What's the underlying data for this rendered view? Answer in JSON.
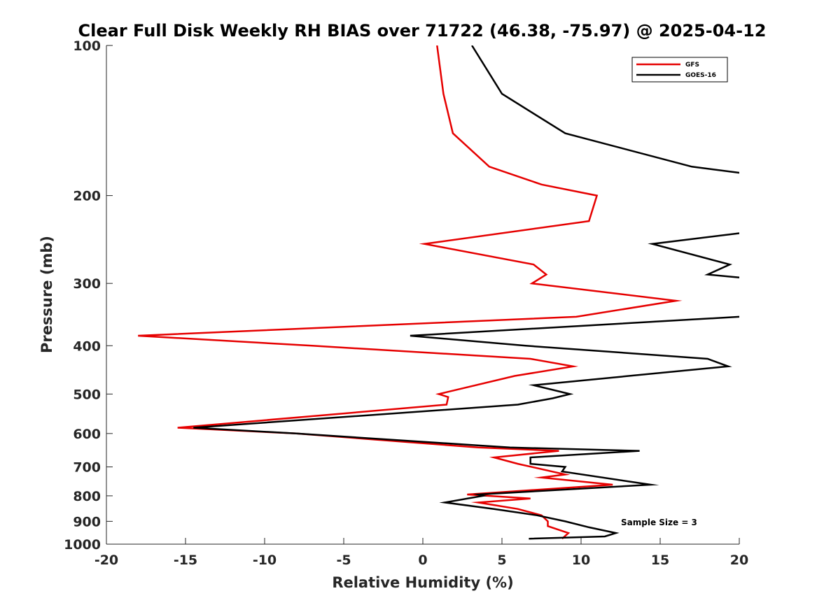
{
  "chart_data": {
    "type": "line",
    "title": "Clear Full Disk Weekly RH BIAS over 71722 (46.38, -75.97) @ 2025-04-12",
    "xlabel": "Relative Humidity (%)",
    "ylabel": "Pressure (mb)",
    "xlim": [
      -20,
      20
    ],
    "ylim": [
      100,
      1000
    ],
    "yscale": "log",
    "reverse_y": true,
    "grid": false,
    "xticks": [
      -20,
      -15,
      -10,
      -5,
      0,
      5,
      10,
      15,
      20
    ],
    "xtick_labels": [
      "-20",
      "-15",
      "-10",
      "-5",
      "0",
      "5",
      "10",
      "15",
      "20"
    ],
    "yticks": [
      100,
      200,
      300,
      400,
      500,
      600,
      700,
      800,
      900,
      1000
    ],
    "ytick_labels": [
      "100",
      "200",
      "300",
      "400",
      "500",
      "600",
      "700",
      "800",
      "900",
      "1000"
    ],
    "legend_position": "top-right",
    "annotation": "Sample Size = 3",
    "series": [
      {
        "name": "GFS",
        "color": "#e60000",
        "points": [
          [
            0.9,
            100
          ],
          [
            1.3,
            125
          ],
          [
            1.9,
            150
          ],
          [
            4.2,
            175
          ],
          [
            7.5,
            190
          ],
          [
            11.0,
            200
          ],
          [
            10.5,
            225
          ],
          [
            0.1,
            250
          ],
          [
            7.0,
            275
          ],
          [
            7.8,
            288
          ],
          [
            6.9,
            300
          ],
          [
            16.0,
            325
          ],
          [
            9.7,
            350
          ],
          [
            -18.0,
            382
          ],
          [
            -7.0,
            400
          ],
          [
            6.8,
            425
          ],
          [
            9.5,
            440
          ],
          [
            5.8,
            460
          ],
          [
            1.0,
            500
          ],
          [
            1.6,
            507
          ],
          [
            1.5,
            525
          ],
          [
            -15.5,
            584
          ],
          [
            -8.0,
            600
          ],
          [
            3.5,
            640
          ],
          [
            8.6,
            650
          ],
          [
            4.5,
            670
          ],
          [
            6.0,
            690
          ],
          [
            9.0,
            725
          ],
          [
            7.5,
            735
          ],
          [
            12.0,
            760
          ],
          [
            2.8,
            795
          ],
          [
            6.8,
            810
          ],
          [
            3.5,
            825
          ],
          [
            6.0,
            850
          ],
          [
            7.5,
            875
          ],
          [
            7.9,
            900
          ],
          [
            7.9,
            920
          ],
          [
            9.2,
            950
          ],
          [
            8.8,
            975
          ]
        ]
      },
      {
        "name": "GOES-16",
        "color": "#000000",
        "points": [
          [
            3.1,
            100
          ],
          [
            5.0,
            125
          ],
          [
            9.0,
            150
          ],
          [
            17.0,
            175
          ],
          [
            20.0,
            180
          ],
          null,
          [
            20.0,
            238
          ],
          [
            14.5,
            250
          ],
          [
            19.4,
            275
          ],
          [
            18.0,
            288
          ],
          [
            20.0,
            292
          ],
          null,
          [
            20.0,
            350
          ],
          [
            -0.8,
            382
          ],
          [
            6.5,
            400
          ],
          [
            18.0,
            425
          ],
          [
            19.3,
            440
          ],
          [
            7.0,
            480
          ],
          [
            9.3,
            500
          ],
          [
            8.2,
            510
          ],
          [
            6.0,
            525
          ],
          [
            -14.5,
            584
          ],
          [
            -8.0,
            600
          ],
          [
            5.5,
            640
          ],
          [
            13.7,
            650
          ],
          [
            6.8,
            670
          ],
          [
            6.8,
            690
          ],
          [
            9.0,
            700
          ],
          [
            8.8,
            715
          ],
          [
            14.4,
            760
          ],
          [
            3.5,
            795
          ],
          [
            3.8,
            800
          ],
          [
            1.4,
            825
          ],
          [
            4.5,
            850
          ],
          [
            7.2,
            875
          ],
          [
            9.0,
            900
          ],
          [
            10.5,
            925
          ],
          [
            12.2,
            950
          ],
          [
            11.5,
            965
          ],
          [
            6.7,
            975
          ]
        ]
      }
    ]
  }
}
